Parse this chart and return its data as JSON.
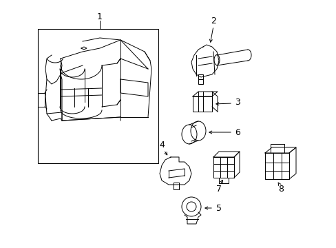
{
  "background_color": "#ffffff",
  "line_color": "#000000",
  "label_color": "#000000",
  "figsize": [
    4.89,
    3.6
  ],
  "dpi": 100
}
